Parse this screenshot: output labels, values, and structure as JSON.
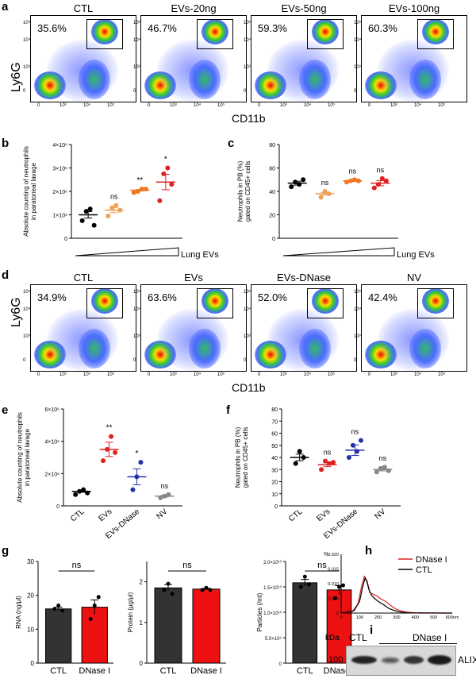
{
  "panels": {
    "a": "a",
    "b": "b",
    "c": "c",
    "d": "d",
    "e": "e",
    "f": "f",
    "g": "g",
    "h": "h",
    "i": "i"
  },
  "flow_a": {
    "ylabel": "Ly6G",
    "xlabel": "CD11b",
    "plots": [
      {
        "title": "CTL",
        "pct": "35.6%"
      },
      {
        "title": "EVs-20ng",
        "pct": "46.7%"
      },
      {
        "title": "EVs-50ng",
        "pct": "59.3%"
      },
      {
        "title": "EVs-100ng",
        "pct": "60.3%"
      }
    ]
  },
  "flow_d": {
    "ylabel": "Ly6G",
    "xlabel": "CD11b",
    "plots": [
      {
        "title": "CTL",
        "pct": "34.9%"
      },
      {
        "title": "EVs",
        "pct": "63.6%"
      },
      {
        "title": "EVs-DNase",
        "pct": "52.0%"
      },
      {
        "title": "NV",
        "pct": "42.4%"
      }
    ]
  },
  "flow_ticks": {
    "x": [
      "0",
      "10³",
      "10⁴",
      "10⁵"
    ],
    "y": [
      "10⁵",
      "10⁴",
      "10³",
      "0"
    ]
  },
  "chart_data": [
    {
      "id": "b",
      "type": "scatter",
      "ylabel": "Absolute counting of neutrophils in paratoneal lavage",
      "yticks": [
        "0",
        "1×10⁶",
        "2×10⁶",
        "3×10⁶",
        "4×10⁶"
      ],
      "ylim": [
        0,
        4000000
      ],
      "xlabel": "Lung EVs",
      "groups": [
        {
          "mean": 1000000,
          "points": [
            750000,
            1150000,
            1250000,
            550000
          ],
          "color": "#000000",
          "sig": ""
        },
        {
          "mean": 1200000,
          "points": [
            950000,
            1300000,
            1400000,
            1200000
          ],
          "color": "#f0a055",
          "sig": "ns"
        },
        {
          "mean": 2050000,
          "points": [
            1950000,
            2000000,
            2100000,
            2100000
          ],
          "color": "#ee7722",
          "sig": "**"
        },
        {
          "mean": 2400000,
          "points": [
            1600000,
            2750000,
            3000000,
            2300000
          ],
          "color": "#e02020",
          "sig": "*"
        }
      ]
    },
    {
      "id": "c",
      "type": "scatter",
      "ylabel": "Neutrophils in PB (%) gated on CD45+ cells",
      "yticks": [
        "0",
        "20",
        "40",
        "60",
        "80"
      ],
      "ylim": [
        0,
        80
      ],
      "xlabel": "Lung EVs",
      "groups": [
        {
          "mean": 47,
          "points": [
            44,
            48,
            46,
            50
          ],
          "color": "#000000",
          "sig": ""
        },
        {
          "mean": 38,
          "points": [
            35,
            40,
            38
          ],
          "color": "#f0a055",
          "sig": "ns"
        },
        {
          "mean": 49,
          "points": [
            48,
            49,
            50,
            49
          ],
          "color": "#ee7722",
          "sig": "ns"
        },
        {
          "mean": 47,
          "points": [
            43,
            46,
            51,
            49
          ],
          "color": "#e02020",
          "sig": "ns"
        }
      ]
    },
    {
      "id": "e",
      "type": "scatter",
      "ylabel": "Absolute counting of neutrophils in paratoneal lavage",
      "yticks": [
        "0",
        "2×10⁶",
        "4×10⁶",
        "6×10⁶"
      ],
      "ylim": [
        0,
        6000000
      ],
      "categories": [
        "CTL",
        "EVs",
        "EVs-DNase",
        "NV"
      ],
      "groups": [
        {
          "mean": 900000,
          "points": [
            700000,
            900000,
            1000000,
            800000
          ],
          "color": "#000000",
          "sig": ""
        },
        {
          "mean": 3500000,
          "points": [
            2800000,
            3500000,
            4300000,
            3300000
          ],
          "color": "#e02020",
          "sig": "**"
        },
        {
          "mean": 1800000,
          "points": [
            1000000,
            1800000,
            2700000
          ],
          "color": "#2233aa",
          "sig": "*"
        },
        {
          "mean": 600000,
          "points": [
            500000,
            600000,
            700000
          ],
          "color": "#888888",
          "sig": "ns"
        }
      ]
    },
    {
      "id": "f",
      "type": "scatter",
      "ylabel": "Neutrophils in PB (%) gated on CD45+ cells",
      "yticks": [
        "0",
        "10",
        "20",
        "30",
        "40",
        "50",
        "60",
        "70",
        "80"
      ],
      "ylim": [
        0,
        80
      ],
      "categories": [
        "CTL",
        "EVs",
        "EVs-DNase",
        "NV"
      ],
      "groups": [
        {
          "mean": 40,
          "points": [
            35,
            45,
            40
          ],
          "color": "#000000",
          "sig": ""
        },
        {
          "mean": 34,
          "points": [
            30,
            37,
            35,
            36
          ],
          "color": "#e02020",
          "sig": "ns"
        },
        {
          "mean": 46,
          "points": [
            40,
            50,
            45,
            54
          ],
          "color": "#2233aa",
          "sig": "ns"
        },
        {
          "mean": 30,
          "points": [
            28,
            31,
            32,
            29
          ],
          "color": "#888888",
          "sig": "ns"
        }
      ]
    },
    {
      "id": "g1",
      "type": "bar",
      "ylabel": "RNA (ng/μl)",
      "yticks": [
        "0",
        "10",
        "20",
        "30"
      ],
      "ylim": [
        0,
        30
      ],
      "categories": [
        "CTL",
        "DNase I"
      ],
      "values": [
        16,
        16.5
      ],
      "points": [
        [
          16,
          17,
          15.5
        ],
        [
          13,
          17,
          19.5
        ]
      ],
      "sig": "ns"
    },
    {
      "id": "g2",
      "type": "bar",
      "ylabel": "Protein (μg/μl)",
      "yticks": [
        "0",
        "1",
        "2"
      ],
      "ylim": [
        0,
        2.5
      ],
      "categories": [
        "CTL",
        "DNase I"
      ],
      "values": [
        1.85,
        1.82
      ],
      "points": [
        [
          1.8,
          1.95,
          1.7
        ],
        [
          1.8,
          1.85,
          1.8
        ]
      ],
      "sig": "ns"
    },
    {
      "id": "g3",
      "type": "bar",
      "ylabel": "Particles (/ml)",
      "yticks": [
        "0",
        "5.0×10⁹",
        "1.0×10¹⁰",
        "1.5×10¹⁰",
        "2.0×10¹⁰"
      ],
      "ylim": [
        0,
        20000000000
      ],
      "categories": [
        "CTL",
        "DNase I"
      ],
      "values": [
        15800000000,
        14400000000
      ],
      "points": [
        [
          15000000000,
          17000000000,
          15500000000
        ],
        [
          12800000000,
          15000000000,
          15300000000
        ]
      ],
      "sig": "ns"
    },
    {
      "id": "h",
      "type": "line",
      "ylabel": "%",
      "yticks": [
        "0",
        "0.005",
        "0.010",
        "0.015",
        "0.020"
      ],
      "xticks": [
        "0",
        "100",
        "200",
        "300",
        "400",
        "500",
        "600nm"
      ],
      "ylim": [
        0,
        0.02
      ],
      "xlim": [
        0,
        600
      ],
      "series": [
        {
          "name": "DNase I",
          "color": "#e02020",
          "x": [
            0,
            60,
            90,
            110,
            125,
            140,
            155,
            170,
            190,
            210,
            240,
            270,
            300,
            340,
            380,
            420,
            600
          ],
          "y": [
            0,
            0.0005,
            0.003,
            0.009,
            0.0125,
            0.011,
            0.007,
            0.0065,
            0.006,
            0.005,
            0.004,
            0.0025,
            0.0012,
            0.0005,
            0.0002,
            0,
            0
          ]
        },
        {
          "name": "CTL",
          "color": "#000000",
          "x": [
            0,
            70,
            100,
            115,
            130,
            140,
            150,
            165,
            180,
            200,
            230,
            260,
            300,
            350,
            600
          ],
          "y": [
            0,
            0.0008,
            0.004,
            0.0085,
            0.012,
            0.0105,
            0.008,
            0.006,
            0.005,
            0.004,
            0.0028,
            0.0015,
            0.0006,
            0.0001,
            0
          ]
        }
      ]
    }
  ],
  "panel_i": {
    "kda": "kDa",
    "marker": "100",
    "lanes": [
      "CTL",
      "DNase I"
    ],
    "protein": "ALIX"
  }
}
